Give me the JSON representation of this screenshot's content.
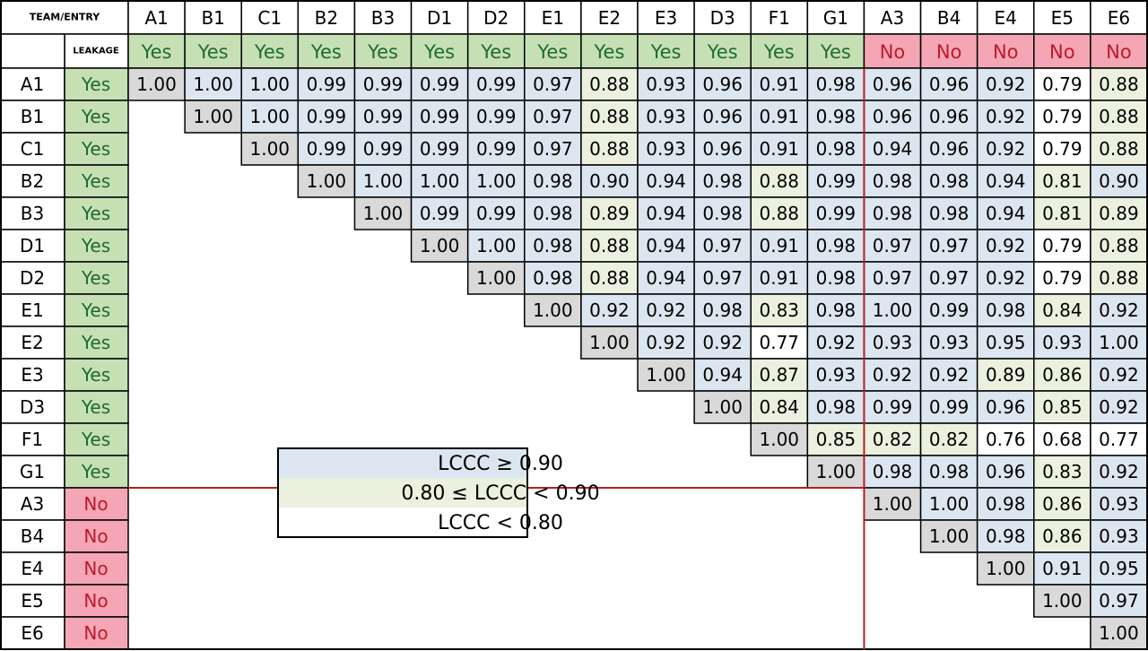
{
  "header": {
    "corner": "TEAM/ENTRY",
    "leakage_label": "LEAKAGE"
  },
  "leakage_styles": {
    "Yes": {
      "fill": "#c6e0b4",
      "text": "#1e6b30"
    },
    "No": {
      "fill": "#f4a6b4",
      "text": "#c0182b"
    }
  },
  "diagonal_color": "#d9d9d9",
  "legend": [
    {
      "label": "LCCC ≥ 0.90",
      "color": "#dce6f1",
      "min": 0.9
    },
    {
      "label": "0.80 ≤ LCCC < 0.90",
      "color": "#ebf1de",
      "min": 0.8
    },
    {
      "label": "LCCC < 0.80",
      "color": "#ffffff"
    }
  ],
  "columns": [
    {
      "name": "A1",
      "leakage": "Yes"
    },
    {
      "name": "B1",
      "leakage": "Yes"
    },
    {
      "name": "C1",
      "leakage": "Yes"
    },
    {
      "name": "B2",
      "leakage": "Yes"
    },
    {
      "name": "B3",
      "leakage": "Yes"
    },
    {
      "name": "D1",
      "leakage": "Yes"
    },
    {
      "name": "D2",
      "leakage": "Yes"
    },
    {
      "name": "E1",
      "leakage": "Yes"
    },
    {
      "name": "E2",
      "leakage": "Yes"
    },
    {
      "name": "E3",
      "leakage": "Yes"
    },
    {
      "name": "D3",
      "leakage": "Yes"
    },
    {
      "name": "F1",
      "leakage": "Yes"
    },
    {
      "name": "G1",
      "leakage": "Yes"
    },
    {
      "name": "A3",
      "leakage": "No"
    },
    {
      "name": "B4",
      "leakage": "No"
    },
    {
      "name": "E4",
      "leakage": "No"
    },
    {
      "name": "E5",
      "leakage": "No"
    },
    {
      "name": "E6",
      "leakage": "No"
    }
  ],
  "rows": [
    {
      "name": "A1",
      "leakage": "Yes",
      "values": [
        "1.00",
        "1.00",
        "1.00",
        "0.99",
        "0.99",
        "0.99",
        "0.99",
        "0.97",
        "0.88",
        "0.93",
        "0.96",
        "0.91",
        "0.98",
        "0.96",
        "0.96",
        "0.92",
        "0.79",
        "0.88"
      ]
    },
    {
      "name": "B1",
      "leakage": "Yes",
      "values": [
        "1.00",
        "1.00",
        "0.99",
        "0.99",
        "0.99",
        "0.99",
        "0.97",
        "0.88",
        "0.93",
        "0.96",
        "0.91",
        "0.98",
        "0.96",
        "0.96",
        "0.92",
        "0.79",
        "0.88"
      ]
    },
    {
      "name": "C1",
      "leakage": "Yes",
      "values": [
        "1.00",
        "0.99",
        "0.99",
        "0.99",
        "0.99",
        "0.97",
        "0.88",
        "0.93",
        "0.96",
        "0.91",
        "0.98",
        "0.94",
        "0.96",
        "0.92",
        "0.79",
        "0.88"
      ]
    },
    {
      "name": "B2",
      "leakage": "Yes",
      "values": [
        "1.00",
        "1.00",
        "1.00",
        "1.00",
        "0.98",
        "0.90",
        "0.94",
        "0.98",
        "0.88",
        "0.99",
        "0.98",
        "0.98",
        "0.94",
        "0.81",
        "0.90"
      ]
    },
    {
      "name": "B3",
      "leakage": "Yes",
      "values": [
        "1.00",
        "0.99",
        "0.99",
        "0.98",
        "0.89",
        "0.94",
        "0.98",
        "0.88",
        "0.99",
        "0.98",
        "0.98",
        "0.94",
        "0.81",
        "0.89"
      ]
    },
    {
      "name": "D1",
      "leakage": "Yes",
      "values": [
        "1.00",
        "1.00",
        "0.98",
        "0.88",
        "0.94",
        "0.97",
        "0.91",
        "0.98",
        "0.97",
        "0.97",
        "0.92",
        "0.79",
        "0.88"
      ]
    },
    {
      "name": "D2",
      "leakage": "Yes",
      "values": [
        "1.00",
        "0.98",
        "0.88",
        "0.94",
        "0.97",
        "0.91",
        "0.98",
        "0.97",
        "0.97",
        "0.92",
        "0.79",
        "0.88"
      ]
    },
    {
      "name": "E1",
      "leakage": "Yes",
      "values": [
        "1.00",
        "0.92",
        "0.92",
        "0.98",
        "0.83",
        "0.98",
        "1.00",
        "0.99",
        "0.98",
        "0.84",
        "0.92"
      ]
    },
    {
      "name": "E2",
      "leakage": "Yes",
      "values": [
        "1.00",
        "0.92",
        "0.92",
        "0.77",
        "0.92",
        "0.93",
        "0.93",
        "0.95",
        "0.93",
        "1.00"
      ]
    },
    {
      "name": "E3",
      "leakage": "Yes",
      "values": [
        "1.00",
        "0.94",
        "0.87",
        "0.93",
        "0.92",
        "0.92",
        "0.89",
        "0.86",
        "0.92"
      ]
    },
    {
      "name": "D3",
      "leakage": "Yes",
      "values": [
        "1.00",
        "0.84",
        "0.98",
        "0.99",
        "0.99",
        "0.96",
        "0.85",
        "0.92"
      ]
    },
    {
      "name": "F1",
      "leakage": "Yes",
      "values": [
        "1.00",
        "0.85",
        "0.82",
        "0.82",
        "0.76",
        "0.68",
        "0.77"
      ]
    },
    {
      "name": "G1",
      "leakage": "Yes",
      "values": [
        "1.00",
        "0.98",
        "0.98",
        "0.96",
        "0.83",
        "0.92"
      ]
    },
    {
      "name": "A3",
      "leakage": "No",
      "values": [
        "1.00",
        "1.00",
        "0.98",
        "0.86",
        "0.93"
      ]
    },
    {
      "name": "B4",
      "leakage": "No",
      "values": [
        "1.00",
        "0.98",
        "0.86",
        "0.93"
      ]
    },
    {
      "name": "E4",
      "leakage": "No",
      "values": [
        "1.00",
        "0.91",
        "0.95"
      ]
    },
    {
      "name": "E5",
      "leakage": "No",
      "values": [
        "1.00",
        "0.97"
      ]
    },
    {
      "name": "E6",
      "leakage": "No",
      "values": [
        "1.00"
      ]
    }
  ]
}
